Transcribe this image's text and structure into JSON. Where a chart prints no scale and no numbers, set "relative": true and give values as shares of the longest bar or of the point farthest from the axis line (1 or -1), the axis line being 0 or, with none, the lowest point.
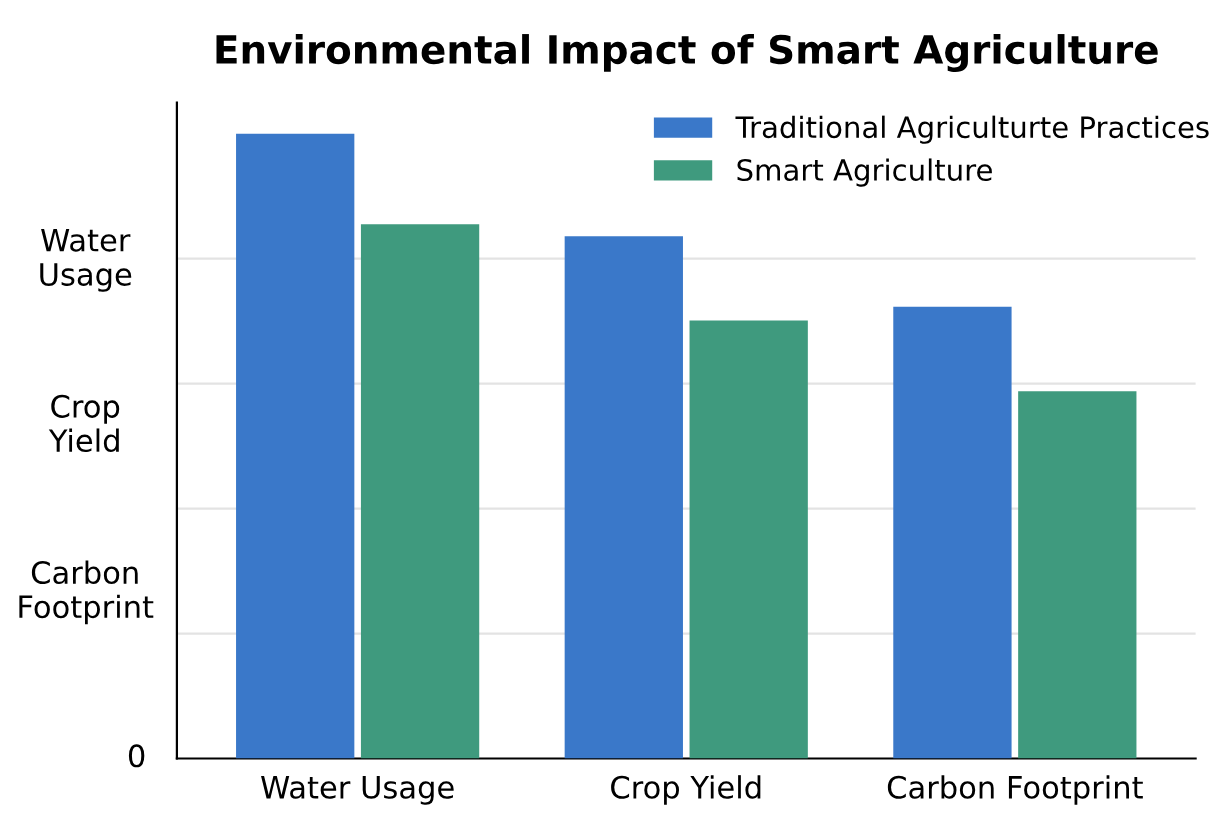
{
  "chart_data": {
    "type": "bar",
    "title": "Environmental Impact of Smart Agriculture",
    "categories": [
      "Water Usage",
      "Crop Yield",
      "Carbon Footprint"
    ],
    "relative": true,
    "series": [
      {
        "name": "Traditional Agriculturte Practices",
        "color": "#3a78c9",
        "values": [
          1,
          0.836,
          0.723
        ]
      },
      {
        "name": "Smart Agriculture",
        "color": "#3f9a7e",
        "values": [
          0.855,
          0.701,
          0.588
        ]
      }
    ],
    "annotations": [
      "Water\nUsage",
      "Crop\nYield",
      "Carbon\nFootprint",
      "0"
    ],
    "ref_lines": [
      {
        "axis": "y",
        "value": 0.2,
        "color": "#e3e3e3"
      },
      {
        "axis": "y",
        "value": 0.4,
        "color": "#e3e3e3"
      },
      {
        "axis": "y",
        "value": 0.6,
        "color": "#e3e3e3"
      },
      {
        "axis": "y",
        "value": 0.8,
        "color": "#e3e3e3"
      }
    ],
    "legend": "top right"
  }
}
